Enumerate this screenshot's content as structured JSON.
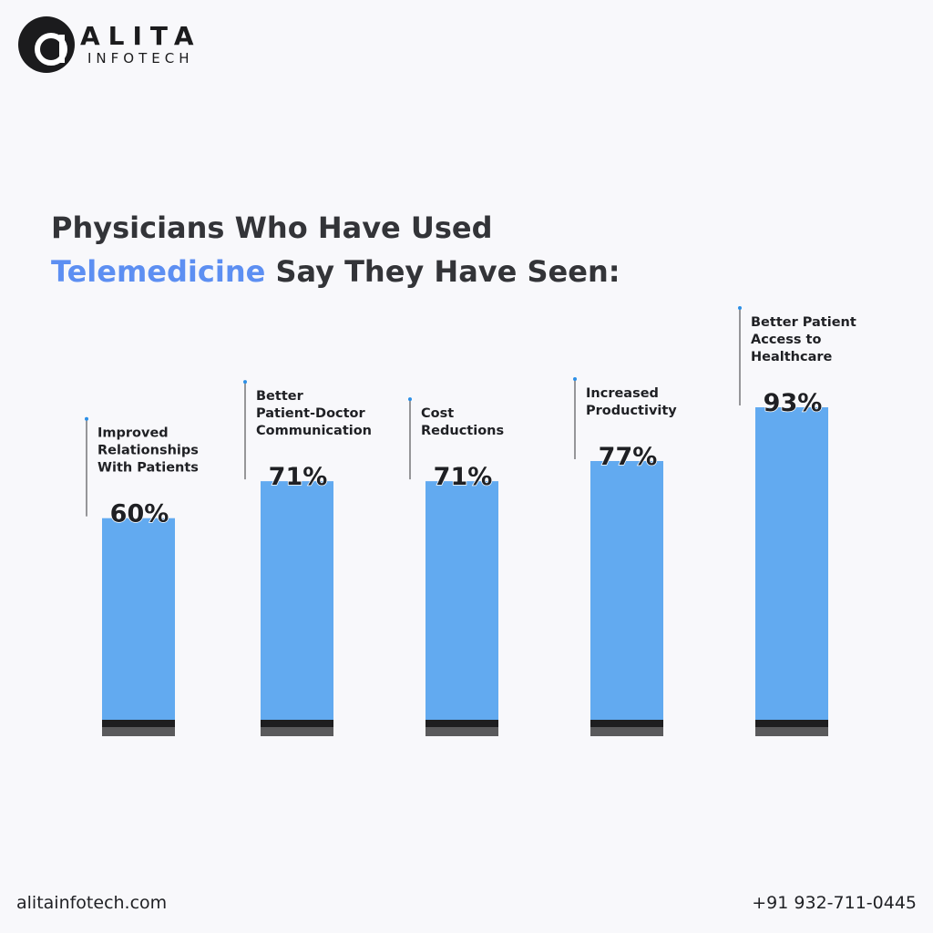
{
  "brand": {
    "name": "ALITA",
    "sub": "INFOTECH",
    "mark_letter": "a"
  },
  "title": {
    "line1": "Physicians Who Have Used",
    "accent": "Telemedicine",
    "line2_rest": " Say They Have Seen:"
  },
  "colors": {
    "bar": "#62aaf0",
    "bar_base_dark": "#1e1e20",
    "bar_base_grey": "#5a5a5c",
    "accent": "#5d8ff2",
    "pin": "#2c8fe6",
    "leader": "#555558"
  },
  "chart_data": {
    "type": "bar",
    "title": "Physicians Who Have Used Telemedicine Say They Have Seen:",
    "categories": [
      [
        "Improved",
        "Relationships",
        "With Patients"
      ],
      [
        "Better",
        "Patient-Doctor",
        "Communication"
      ],
      [
        "Cost",
        "Reductions"
      ],
      [
        "Increased",
        "Productivity"
      ],
      [
        "Better Patient",
        "Access to",
        "Healthcare"
      ]
    ],
    "values": [
      60,
      71,
      71,
      77,
      93
    ],
    "value_labels": [
      "60%",
      "71%",
      "71%",
      "77%",
      "93%"
    ],
    "unit": "%",
    "ylim": [
      0,
      100
    ],
    "grid": false,
    "legend": "none"
  },
  "footer": {
    "website": "alitainfotech.com",
    "phone": "+91 932-711-0445"
  }
}
